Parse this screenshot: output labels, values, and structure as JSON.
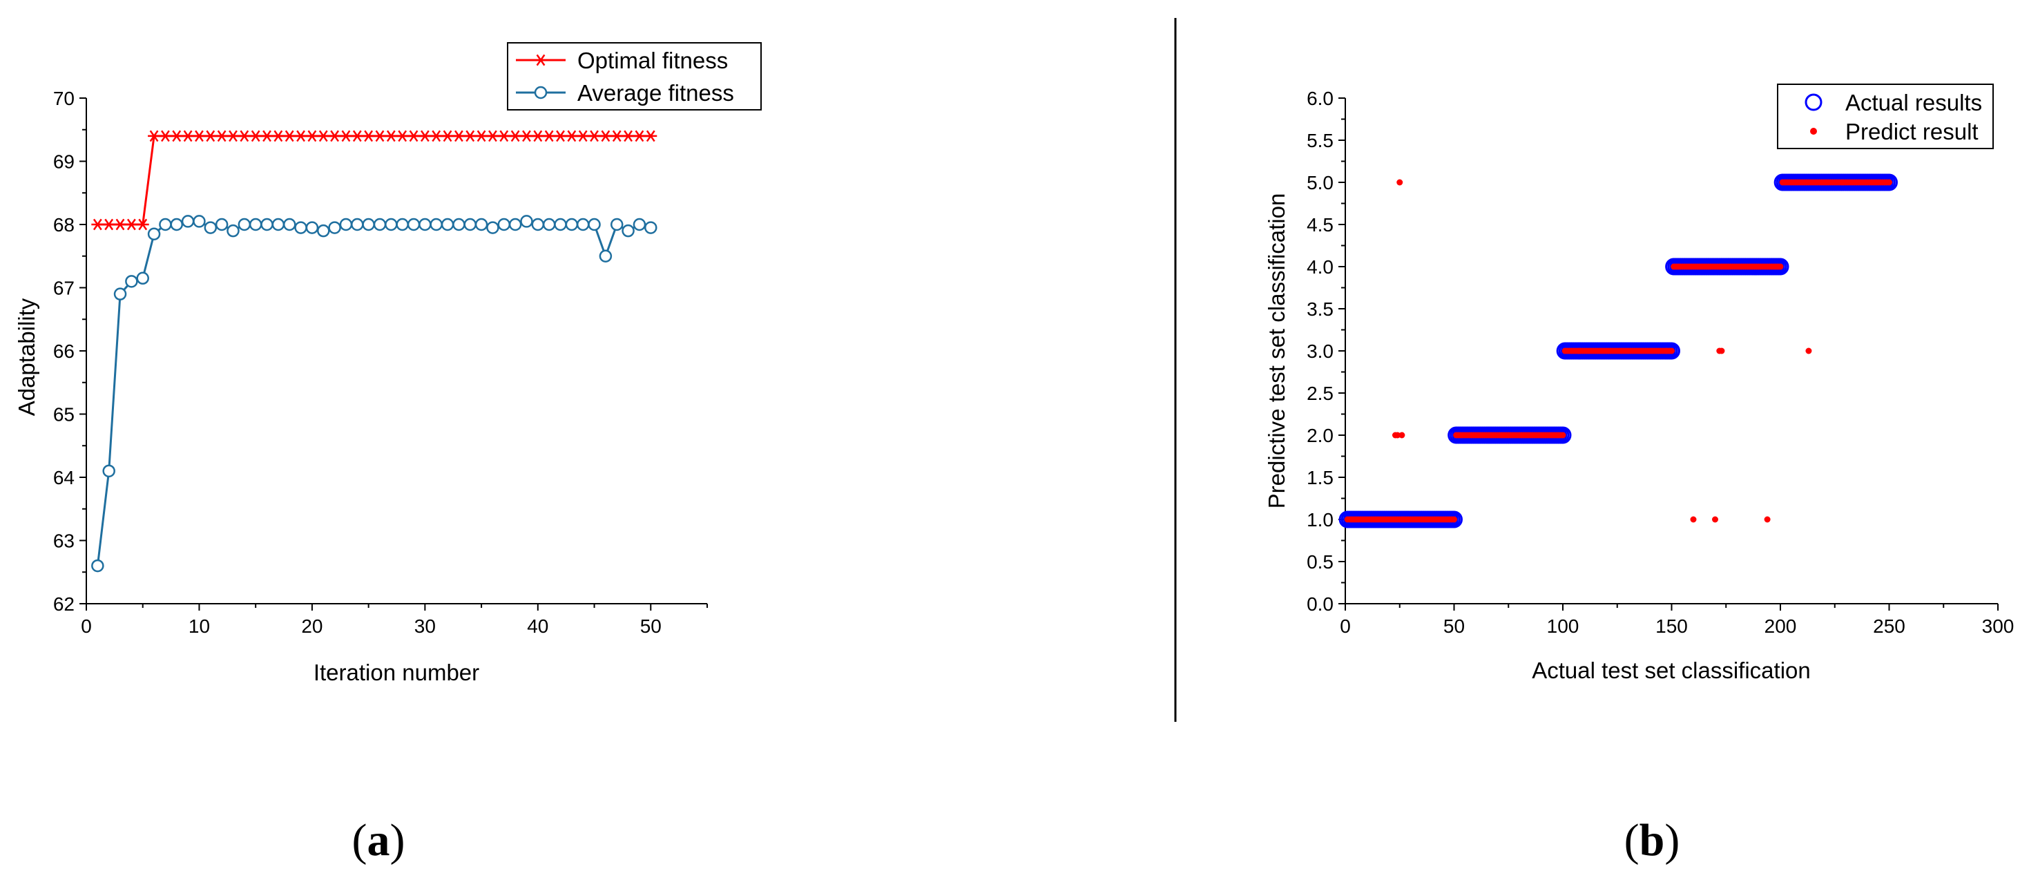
{
  "panels": [
    {
      "caption_pre": "(",
      "caption_letter": "a",
      "caption_post": ")"
    },
    {
      "caption_pre": "(",
      "caption_letter": "b",
      "caption_post": ")"
    }
  ],
  "chart_data": [
    {
      "type": "line",
      "xlabel": "Iteration number",
      "ylabel": "Adaptability",
      "xlim": [
        0,
        55
      ],
      "ylim": [
        62,
        70
      ],
      "x_ticks": [
        0,
        10,
        20,
        30,
        40,
        50
      ],
      "y_ticks": [
        62,
        63,
        64,
        65,
        66,
        67,
        68,
        69,
        70
      ],
      "legend_position": "top-right",
      "grid": false,
      "series": [
        {
          "name": "Optimal fitness",
          "color": "#ff0000",
          "marker": "asterisk",
          "x": [
            1,
            2,
            3,
            4,
            5,
            6,
            7,
            8,
            9,
            10,
            11,
            12,
            13,
            14,
            15,
            16,
            17,
            18,
            19,
            20,
            21,
            22,
            23,
            24,
            25,
            26,
            27,
            28,
            29,
            30,
            31,
            32,
            33,
            34,
            35,
            36,
            37,
            38,
            39,
            40,
            41,
            42,
            43,
            44,
            45,
            46,
            47,
            48,
            49,
            50
          ],
          "y": [
            68,
            68,
            68,
            68,
            68,
            69.4,
            69.4,
            69.4,
            69.4,
            69.4,
            69.4,
            69.4,
            69.4,
            69.4,
            69.4,
            69.4,
            69.4,
            69.4,
            69.4,
            69.4,
            69.4,
            69.4,
            69.4,
            69.4,
            69.4,
            69.4,
            69.4,
            69.4,
            69.4,
            69.4,
            69.4,
            69.4,
            69.4,
            69.4,
            69.4,
            69.4,
            69.4,
            69.4,
            69.4,
            69.4,
            69.4,
            69.4,
            69.4,
            69.4,
            69.4,
            69.4,
            69.4,
            69.4,
            69.4,
            69.4
          ]
        },
        {
          "name": "Average fitness",
          "color": "#1f6f9f",
          "marker": "open-circle",
          "x": [
            1,
            2,
            3,
            4,
            5,
            6,
            7,
            8,
            9,
            10,
            11,
            12,
            13,
            14,
            15,
            16,
            17,
            18,
            19,
            20,
            21,
            22,
            23,
            24,
            25,
            26,
            27,
            28,
            29,
            30,
            31,
            32,
            33,
            34,
            35,
            36,
            37,
            38,
            39,
            40,
            41,
            42,
            43,
            44,
            45,
            46,
            47,
            48,
            49,
            50
          ],
          "y": [
            62.6,
            64.1,
            66.9,
            67.1,
            67.15,
            67.85,
            68,
            68,
            68.05,
            68.05,
            67.95,
            68,
            67.9,
            68,
            68,
            68,
            68,
            68,
            67.95,
            67.95,
            67.9,
            67.95,
            68,
            68,
            68,
            68,
            68,
            68,
            68,
            68,
            68,
            68,
            68,
            68,
            68,
            67.95,
            68,
            68,
            68.05,
            68,
            68,
            68,
            68,
            68,
            68,
            67.5,
            68,
            67.9,
            68,
            67.95
          ]
        }
      ]
    },
    {
      "type": "scatter",
      "xlabel": "Actual test set classification",
      "ylabel": "Predictive test set classification",
      "xlim": [
        0,
        300
      ],
      "ylim": [
        0,
        6
      ],
      "x_ticks": [
        0,
        50,
        100,
        150,
        200,
        250,
        300
      ],
      "y_ticks": [
        0.0,
        0.5,
        1.0,
        1.5,
        2.0,
        2.5,
        3.0,
        3.5,
        4.0,
        4.5,
        5.0,
        5.5,
        6.0
      ],
      "y_tick_labels": [
        "0.0",
        "0.5",
        "1.0",
        "1.5",
        "2.0",
        "2.5",
        "3.0",
        "3.5",
        "4.0",
        "4.5",
        "5.0",
        "5.5",
        "6.0"
      ],
      "legend_position": "top-right",
      "grid": false,
      "series": [
        {
          "name": "Actual results",
          "color": "#0000ff",
          "marker": "open-circle",
          "segments": [
            {
              "x_from": 1,
              "x_to": 50,
              "y": 1
            },
            {
              "x_from": 51,
              "x_to": 100,
              "y": 2
            },
            {
              "x_from": 101,
              "x_to": 150,
              "y": 3
            },
            {
              "x_from": 151,
              "x_to": 200,
              "y": 4
            },
            {
              "x_from": 201,
              "x_to": 250,
              "y": 5
            }
          ]
        },
        {
          "name": "Predict result",
          "color": "#ff0000",
          "marker": "dot",
          "segments": [
            {
              "x_from": 1,
              "x_to": 50,
              "y": 1
            },
            {
              "x_from": 51,
              "x_to": 100,
              "y": 2
            },
            {
              "x_from": 101,
              "x_to": 150,
              "y": 3
            },
            {
              "x_from": 151,
              "x_to": 200,
              "y": 4
            },
            {
              "x_from": 201,
              "x_to": 250,
              "y": 5
            }
          ],
          "outliers": [
            {
              "x": 23,
              "y": 2
            },
            {
              "x": 24,
              "y": 2
            },
            {
              "x": 25,
              "y": 5
            },
            {
              "x": 26,
              "y": 2
            },
            {
              "x": 160,
              "y": 1
            },
            {
              "x": 170,
              "y": 1
            },
            {
              "x": 172,
              "y": 3
            },
            {
              "x": 173,
              "y": 3
            },
            {
              "x": 194,
              "y": 1
            },
            {
              "x": 213,
              "y": 3
            }
          ]
        }
      ]
    }
  ]
}
